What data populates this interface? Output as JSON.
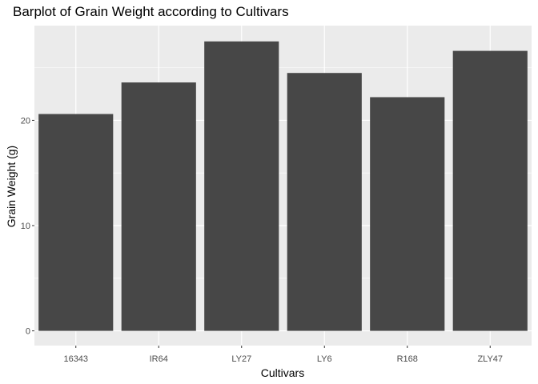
{
  "chart_data": {
    "type": "bar",
    "title": "Barplot of Grain Weight according to Cultivars",
    "xlabel": "Cultivars",
    "ylabel": "Grain Weight (g)",
    "categories": [
      "16343",
      "IR64",
      "LY27",
      "LY6",
      "R168",
      "ZLY47"
    ],
    "values": [
      20.6,
      23.6,
      27.5,
      24.5,
      22.2,
      26.6
    ],
    "ylim": [
      -1.4,
      29.0
    ],
    "yticks": [
      0,
      10,
      20
    ],
    "ytick_labels": [
      "0",
      "10",
      "20"
    ],
    "grid": true,
    "legend": "none",
    "colors": {
      "panel_background": "#ebebeb",
      "grid_line": "#ffffff",
      "bar_fill": "#474747",
      "tick_text": "#4d4d4d",
      "text": "#000000"
    }
  }
}
